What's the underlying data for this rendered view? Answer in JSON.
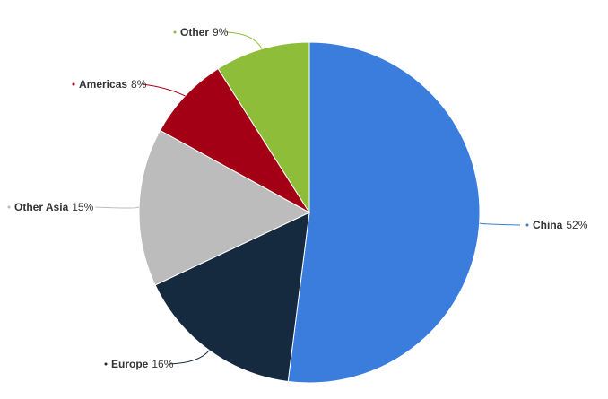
{
  "chart_data": {
    "type": "pie",
    "title": "",
    "slices": [
      {
        "label": "China",
        "value": 52,
        "value_label": "52%",
        "color": "#3a7ddc"
      },
      {
        "label": "Europe",
        "value": 16,
        "value_label": "16%",
        "color": "#15293f"
      },
      {
        "label": "Other Asia",
        "value": 15,
        "value_label": "15%",
        "color": "#bcbcbc"
      },
      {
        "label": "Americas",
        "value": 8,
        "value_label": "8%",
        "color": "#a30016"
      },
      {
        "label": "Other",
        "value": 9,
        "value_label": "9%",
        "color": "#8ebd3a"
      }
    ],
    "start_angle": "12 o'clock",
    "direction": "clockwise",
    "legend": "none"
  }
}
